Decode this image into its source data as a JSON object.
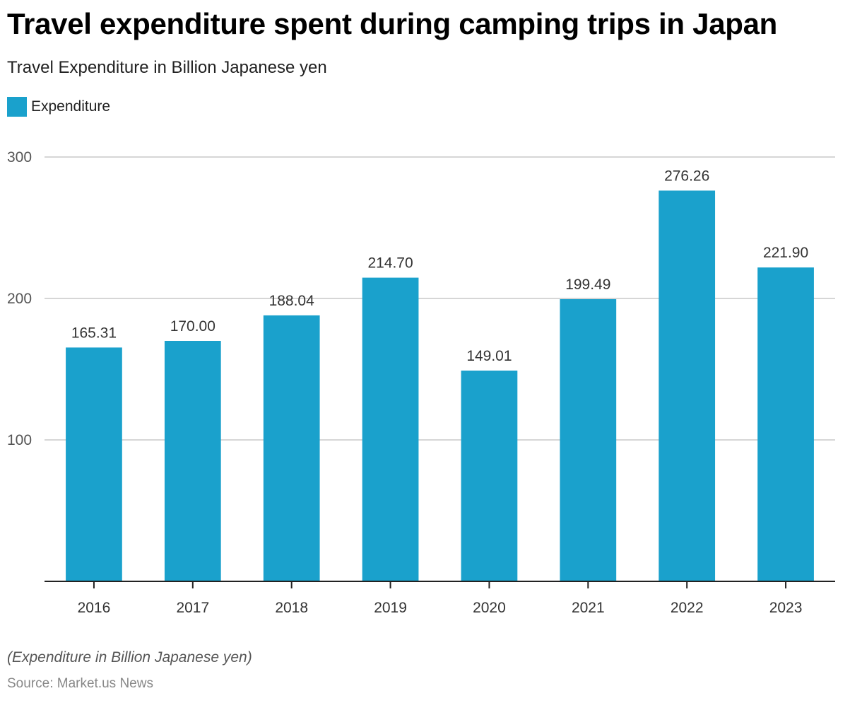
{
  "chart_data": {
    "type": "bar",
    "title": "Travel expenditure spent during camping trips in Japan",
    "subtitle": "Travel Expenditure in Billion Japanese yen",
    "categories": [
      "2016",
      "2017",
      "2018",
      "2019",
      "2020",
      "2021",
      "2022",
      "2023"
    ],
    "series": [
      {
        "name": "Expenditure",
        "color": "#1aa1cc",
        "values": [
          165.31,
          170.0,
          188.04,
          214.7,
          149.01,
          199.49,
          276.26,
          221.9
        ],
        "value_labels": [
          "165.31",
          "170.00",
          "188.04",
          "214.70",
          "149.01",
          "199.49",
          "276.26",
          "221.90"
        ]
      }
    ],
    "xlabel": "",
    "ylabel": "",
    "ylim": [
      0,
      300
    ],
    "yticks": [
      100,
      200,
      300
    ],
    "ytick_labels": [
      "100",
      "200",
      "300"
    ],
    "grid": true,
    "legend_position": "top-left",
    "note": "(Expenditure in Billion Japanese yen)",
    "source": "Source: Market.us News"
  }
}
